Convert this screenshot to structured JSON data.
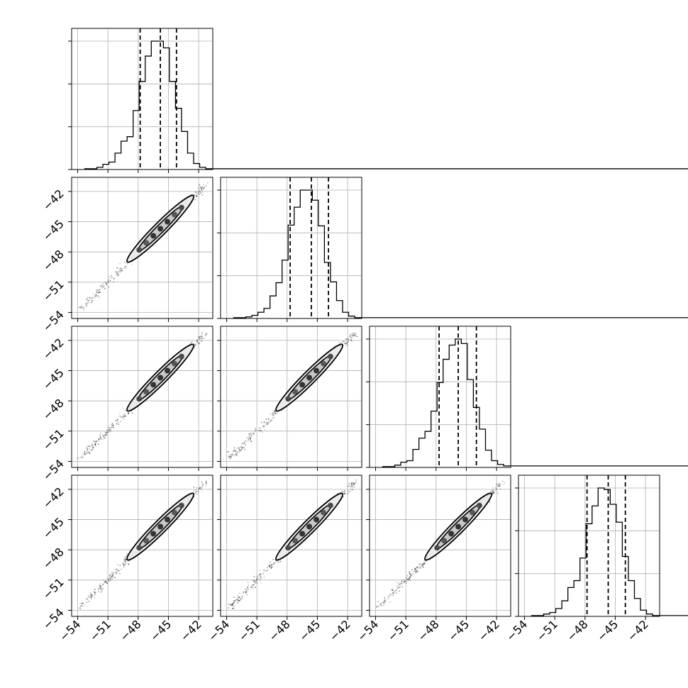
{
  "chart_data": {
    "type": "corner",
    "n_params": 4,
    "axis_range": [
      -54.6,
      -40.6
    ],
    "tick_values": [
      -54,
      -51,
      -48,
      -45,
      -42
    ],
    "tick_labels": [
      "−54",
      "−51",
      "−48",
      "−45",
      "−42"
    ],
    "x_tick_labels": [
      [
        "−54",
        "−51",
        "−48",
        "−45",
        "−42"
      ],
      [
        "−54",
        "−51",
        "−48",
        "−45",
        "−42"
      ],
      [
        "−54",
        "−51",
        "−48",
        "−45",
        "−42"
      ],
      [
        "−54",
        "−51",
        "−48",
        "−45",
        "−42"
      ]
    ],
    "y_tick_labels": [
      [
        "−54",
        "−51",
        "−48",
        "−45",
        "−42"
      ],
      [
        "−54",
        "−51",
        "−48",
        "−45",
        "−42"
      ],
      [
        "−54",
        "−51",
        "−48",
        "−45",
        "−42"
      ]
    ],
    "grid": true,
    "histograms": [
      {
        "bins_left": [
          -53.3,
          -52.7,
          -52.1,
          -51.5,
          -50.9,
          -50.3,
          -49.7,
          -49.1,
          -48.5,
          -47.9,
          -47.3,
          -46.7,
          -46.1,
          -45.5,
          -44.9,
          -44.3,
          -43.7,
          -43.1,
          -42.5,
          -41.9,
          -41.3
        ],
        "bin_width": 0.6,
        "counts": [
          1,
          1,
          3,
          7,
          10,
          22,
          38,
          44,
          79,
          118,
          152,
          172,
          172,
          163,
          118,
          82,
          51,
          22,
          8,
          3,
          1
        ],
        "quantiles": [
          -47.8,
          -45.8,
          -44.2
        ]
      },
      {
        "bins_left": [
          -53.3,
          -52.7,
          -52.1,
          -51.5,
          -50.9,
          -50.3,
          -49.7,
          -49.1,
          -48.5,
          -47.9,
          -47.3,
          -46.7,
          -46.1,
          -45.5,
          -44.9,
          -44.3,
          -43.7,
          -43.1,
          -42.5,
          -41.9,
          -41.3
        ],
        "bin_width": 0.6,
        "counts": [
          1,
          1,
          2,
          4,
          8,
          13,
          29,
          46,
          75,
          120,
          143,
          165,
          165,
          152,
          119,
          72,
          47,
          23,
          8,
          3,
          1
        ],
        "quantiles": [
          -47.7,
          -45.6,
          -43.9
        ]
      },
      {
        "bins_left": [
          -53.3,
          -52.7,
          -52.1,
          -51.5,
          -50.9,
          -50.3,
          -49.7,
          -49.1,
          -48.5,
          -47.9,
          -47.3,
          -46.7,
          -46.1,
          -45.5,
          -44.9,
          -44.3,
          -43.7,
          -43.1,
          -42.5,
          -41.9,
          -41.3
        ],
        "bin_width": 0.6,
        "counts": [
          1,
          1,
          3,
          7,
          9,
          24,
          39,
          48,
          75,
          113,
          144,
          163,
          171,
          165,
          117,
          80,
          51,
          23,
          9,
          4,
          2
        ],
        "quantiles": [
          -47.7,
          -45.8,
          -44.0
        ]
      },
      {
        "bins_left": [
          -53.3,
          -52.7,
          -52.1,
          -51.5,
          -50.9,
          -50.3,
          -49.7,
          -49.1,
          -48.5,
          -47.9,
          -47.3,
          -46.7,
          -46.1,
          -45.5,
          -44.9,
          -44.3,
          -43.7,
          -43.1,
          -42.5,
          -41.9,
          -41.3
        ],
        "bin_width": 0.6,
        "counts": [
          1,
          1,
          3,
          5,
          10,
          20,
          37,
          46,
          75,
          119,
          142,
          165,
          163,
          144,
          121,
          77,
          46,
          23,
          8,
          3,
          1
        ],
        "quantiles": [
          -47.8,
          -45.7,
          -44.0
        ]
      }
    ],
    "scatter_panels": [
      {
        "row": 1,
        "col": 0
      },
      {
        "row": 2,
        "col": 0
      },
      {
        "row": 2,
        "col": 1
      },
      {
        "row": 3,
        "col": 0
      },
      {
        "row": 3,
        "col": 1
      },
      {
        "row": 3,
        "col": 2
      }
    ],
    "scatter_trend": {
      "x_range": [
        -53.7,
        -41.2
      ],
      "slope": 1.0
    },
    "contour_centers": [
      -45.8,
      -45.7
    ],
    "xlabel": "",
    "ylabel": "",
    "title": ""
  }
}
